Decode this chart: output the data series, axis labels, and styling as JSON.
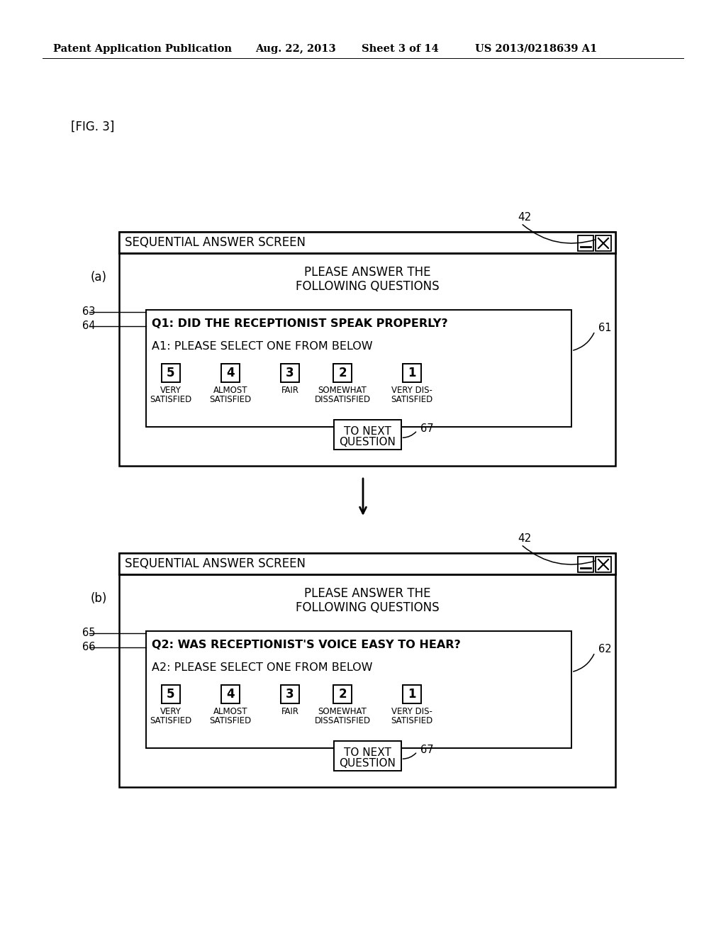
{
  "bg_color": "#ffffff",
  "header_line1": "Patent Application Publication",
  "header_date": "Aug. 22, 2013",
  "header_sheet": "Sheet 3 of 14",
  "header_patent": "US 2013/0218639 A1",
  "fig_label": "[FIG. 3]",
  "panel_a_label": "(a)",
  "panel_b_label": "(b)",
  "label_42a": "42",
  "label_42b": "42",
  "label_63": "63",
  "label_64": "64",
  "label_61": "61",
  "label_65": "65",
  "label_66": "66",
  "label_62": "62",
  "label_67a": "67",
  "label_67b": "67",
  "window_title": "SEQUENTIAL ANSWER SCREEN",
  "q1_text": "Q1: DID THE RECEPTIONIST SPEAK PROPERLY?",
  "a1_text": "A1: PLEASE SELECT ONE FROM BELOW",
  "q2_text": "Q2: WAS RECEPTIONIST'S VOICE EASY TO HEAR?",
  "a2_text": "A2: PLEASE SELECT ONE FROM BELOW",
  "ratings": [
    "5",
    "4",
    "3",
    "2",
    "1"
  ],
  "rating_labels_line1": [
    "VERY",
    "ALMOST",
    "FAIR",
    "SOMEWHAT",
    "VERY DIS-"
  ],
  "rating_labels_line2": [
    "SATISFIED",
    "SATISFIED",
    "",
    "DISSATISFIED",
    "SATISFIED"
  ],
  "font_color": "#000000"
}
